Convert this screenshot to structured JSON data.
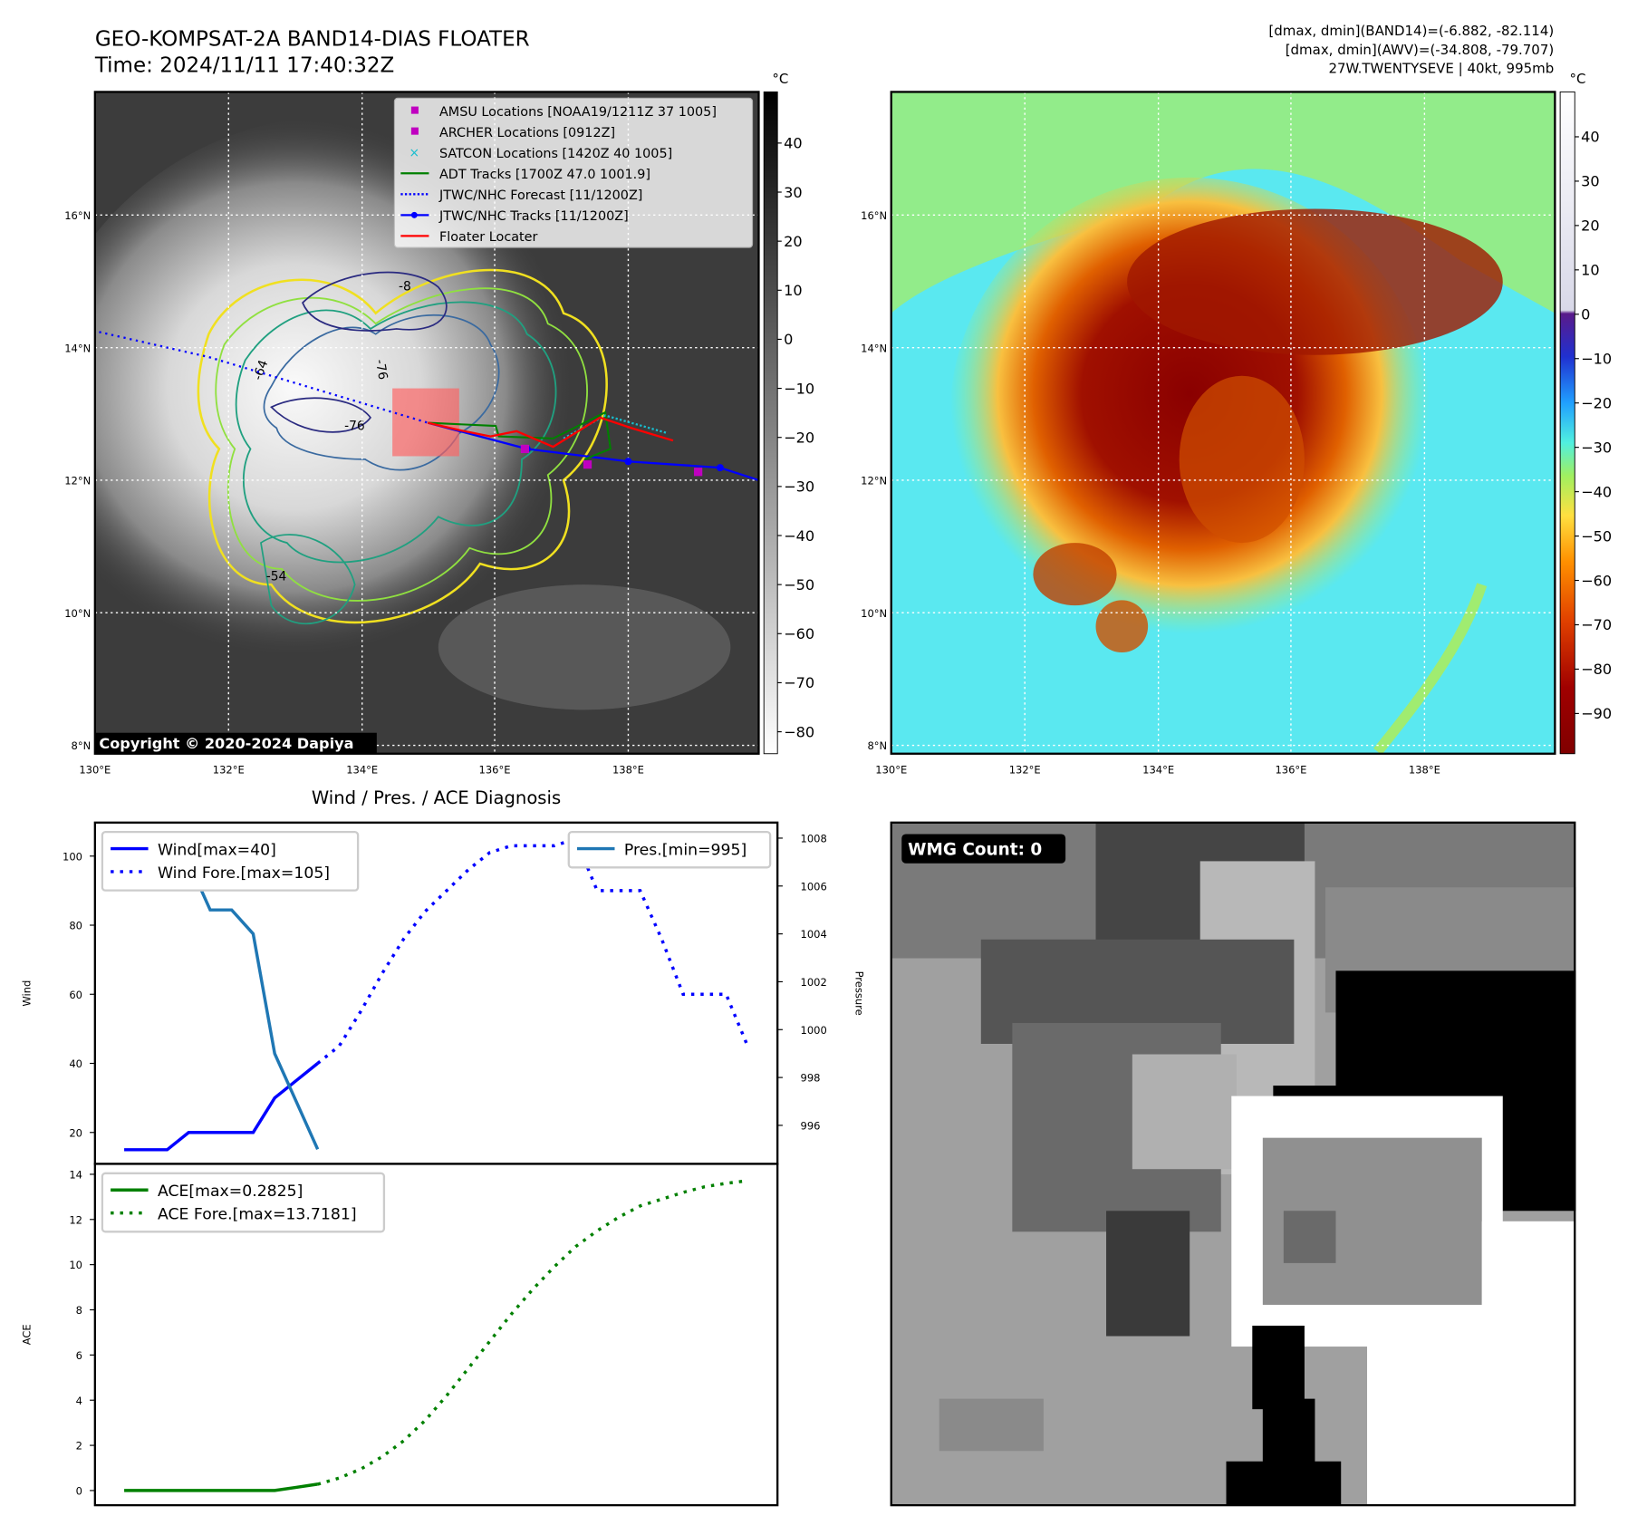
{
  "header": {
    "title_line1": "GEO-KOMPSAT-2A BAND14-DIAS FLOATER",
    "title_line2": "Time: 2024/11/11 17:40:32Z",
    "info_line1": "[dmax, dmin](BAND14)=(-6.882, -82.114)",
    "info_line2": "[dmax, dmin](AWV)=(-34.808, -79.707)",
    "info_line3": "27W.TWENTYSEVE | 40kt, 995mb"
  },
  "maps": {
    "lon_labels": [
      "130°E",
      "132°E",
      "134°E",
      "136°E",
      "138°E"
    ],
    "lat_labels": [
      "16°N",
      "14°N",
      "12°N",
      "10°N",
      "8°N"
    ],
    "copyright": "Copyright © 2020-2024 Dapiya",
    "colorbar_unit": "°C",
    "left_colorbar_ticks": [
      "40",
      "30",
      "20",
      "10",
      "0",
      "−10",
      "−20",
      "−30",
      "−40",
      "−50",
      "−60",
      "−70",
      "−80"
    ],
    "right_colorbar_ticks": [
      "40",
      "30",
      "20",
      "10",
      "0",
      "−10",
      "−20",
      "−30",
      "−40",
      "−50",
      "−60",
      "−70",
      "−80",
      "−90"
    ],
    "contour_labels": [
      "-64",
      "-76",
      "-76",
      "-8",
      "-64",
      "-76",
      "-54"
    ],
    "legend": [
      {
        "label": "AMSU Locations [NOAA19/1211Z 37 1005]",
        "color": "#c000c0",
        "marker": "square"
      },
      {
        "label": "ARCHER Locations [0912Z]",
        "color": "#c000c0",
        "marker": "square"
      },
      {
        "label": "SATCON Locations [1420Z 40 1005]",
        "color": "#17becf",
        "marker": "x"
      },
      {
        "label": "ADT Tracks [1700Z 47.0 1001.9]",
        "color": "#008000",
        "marker": "line"
      },
      {
        "label": "JTWC/NHC Forecast [11/1200Z]",
        "color": "#0000ff",
        "marker": "dotted"
      },
      {
        "label": "JTWC/NHC Tracks [11/1200Z]",
        "color": "#0000ff",
        "marker": "line-dot"
      },
      {
        "label": "Floater Locater",
        "color": "#ff0000",
        "marker": "line"
      }
    ]
  },
  "wmg": {
    "label": "WMG Count: 0"
  },
  "chart_data": [
    {
      "type": "line",
      "title": "Wind / Pres. / ACE Diagnosis",
      "ylabel": "Wind",
      "y2label": "Pressure",
      "ylim": [
        10.9,
        109.7
      ],
      "y2lim": [
        994.39,
        1008.65
      ],
      "xlim": [
        -1.36,
        30.39
      ],
      "yticks": [
        20,
        40,
        60,
        80,
        100
      ],
      "y2ticks": [
        996,
        998,
        1000,
        1002,
        1004,
        1006,
        1008
      ],
      "series": [
        {
          "name": "Wind[max=40]",
          "axis": "left",
          "color": "#0000ff",
          "style": "solid",
          "x": [
            0,
            1,
            2,
            3,
            4,
            5,
            6,
            7,
            8,
            9
          ],
          "values": [
            15,
            15,
            15,
            20,
            20,
            20,
            20,
            30,
            35,
            40
          ]
        },
        {
          "name": "Wind Fore.[max=105]",
          "axis": "left",
          "color": "#0000ff",
          "style": "dotted",
          "x": [
            9,
            10,
            11,
            12,
            13,
            14,
            15,
            16,
            17,
            18,
            19,
            20,
            21,
            22,
            23,
            24,
            25,
            26,
            27,
            28,
            29
          ],
          "values": [
            40,
            45,
            55,
            66,
            76,
            84,
            90,
            96,
            101,
            103,
            103,
            103,
            105,
            90,
            90,
            90,
            76,
            60,
            60,
            60,
            45
          ]
        },
        {
          "name": "Pres.[min=995]",
          "axis": "right",
          "color": "#1f77b4",
          "style": "solid",
          "x": [
            0,
            1,
            2,
            3,
            4,
            5,
            6,
            7,
            8,
            9
          ],
          "values": [
            1008,
            1008,
            1007,
            1007,
            1005,
            1005,
            1004,
            999,
            997,
            995
          ]
        }
      ]
    },
    {
      "type": "line",
      "ylabel": "ACE",
      "ylim": [
        -0.65,
        14.46
      ],
      "xlim": [
        -1.36,
        30.39
      ],
      "yticks": [
        0,
        2,
        4,
        6,
        8,
        10,
        12,
        14
      ],
      "series": [
        {
          "name": "ACE[max=0.2825]",
          "color": "#008000",
          "style": "solid",
          "x": [
            0,
            1,
            2,
            3,
            4,
            5,
            6,
            7,
            8,
            9
          ],
          "values": [
            0,
            0,
            0,
            0,
            0,
            0,
            0,
            0,
            0.14,
            0.2825
          ]
        },
        {
          "name": "ACE Fore.[max=13.7181]",
          "color": "#008000",
          "style": "dotted",
          "x": [
            9,
            10,
            11,
            12,
            13,
            14,
            15,
            16,
            17,
            18,
            19,
            20,
            21,
            22,
            23,
            24,
            25,
            26,
            27,
            28,
            29
          ],
          "values": [
            0.28,
            0.55,
            0.95,
            1.5,
            2.2,
            3.1,
            4.2,
            5.4,
            6.6,
            7.8,
            8.9,
            9.9,
            10.8,
            11.5,
            12.1,
            12.6,
            12.9,
            13.2,
            13.45,
            13.6,
            13.7181
          ]
        }
      ]
    }
  ]
}
